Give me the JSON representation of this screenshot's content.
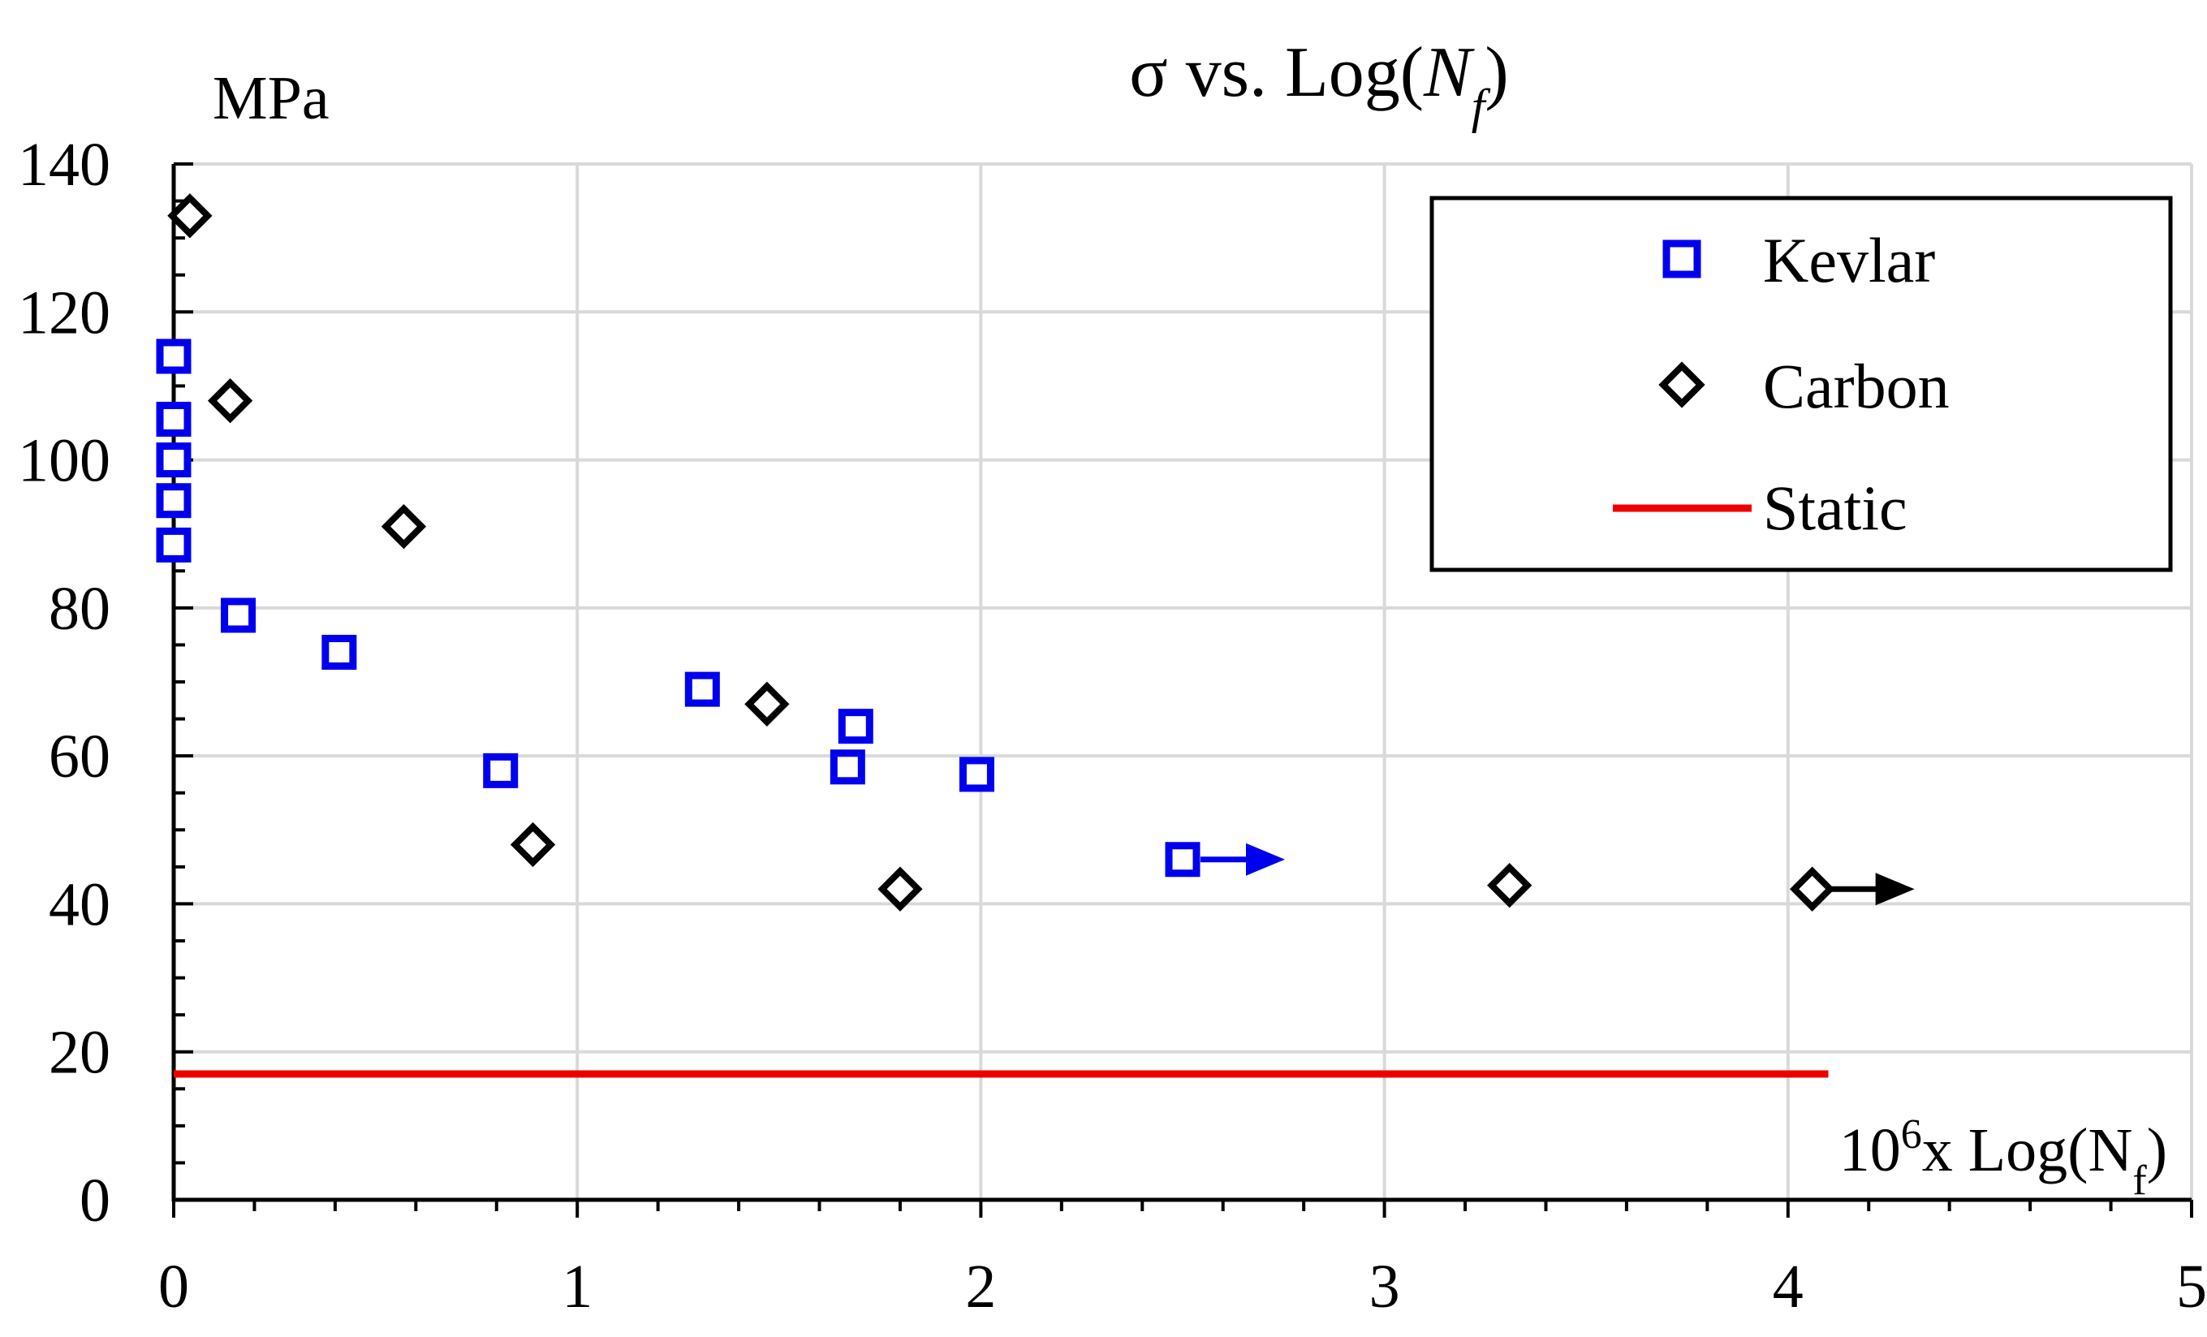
{
  "chart_data": {
    "type": "scatter",
    "title": "σ vs. Log(Nf)",
    "title_parts": {
      "main": "σ vs. Log(",
      "italic": "N",
      "sub": "f",
      "close": ")"
    },
    "ylabel": "MPa",
    "xlabel": "10⁶x Log(Nf)",
    "xlabel_parts": {
      "base": "10",
      "exp": "6",
      "rest": "x Log(N",
      "sub": "f",
      "close": ")"
    },
    "xlim": [
      0,
      5
    ],
    "ylim": [
      0,
      140
    ],
    "xticks": [
      0,
      1,
      2,
      3,
      4,
      5
    ],
    "yticks": [
      0,
      20,
      40,
      60,
      80,
      100,
      120,
      140
    ],
    "grid": true,
    "legend_position": "top-right",
    "series": [
      {
        "name": "Kevlar",
        "marker": "square",
        "color": "#0000ee",
        "points": [
          {
            "x": 0.0,
            "y": 114
          },
          {
            "x": 0.0,
            "y": 105.5
          },
          {
            "x": 0.0,
            "y": 100
          },
          {
            "x": 0.0,
            "y": 94.5
          },
          {
            "x": 0.0,
            "y": 88.5
          },
          {
            "x": 0.16,
            "y": 79
          },
          {
            "x": 0.41,
            "y": 74
          },
          {
            "x": 0.81,
            "y": 58
          },
          {
            "x": 1.31,
            "y": 69
          },
          {
            "x": 1.67,
            "y": 58.5
          },
          {
            "x": 1.69,
            "y": 64
          },
          {
            "x": 1.99,
            "y": 57.5
          },
          {
            "x": 2.5,
            "y": 46,
            "runout": true
          }
        ]
      },
      {
        "name": "Carbon",
        "marker": "diamond",
        "color": "#000000",
        "points": [
          {
            "x": 0.04,
            "y": 133
          },
          {
            "x": 0.14,
            "y": 108
          },
          {
            "x": 0.57,
            "y": 91
          },
          {
            "x": 0.89,
            "y": 48
          },
          {
            "x": 1.47,
            "y": 67
          },
          {
            "x": 1.8,
            "y": 42
          },
          {
            "x": 3.31,
            "y": 42.5
          },
          {
            "x": 4.06,
            "y": 42,
            "runout": true
          }
        ]
      },
      {
        "name": "Static",
        "type": "line",
        "color": "#ee0000",
        "x": [
          0,
          4.1
        ],
        "y": [
          17,
          17
        ]
      }
    ]
  }
}
